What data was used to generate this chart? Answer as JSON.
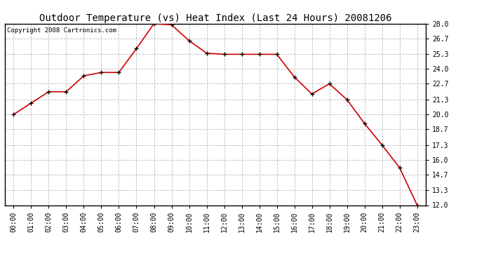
{
  "title": "Outdoor Temperature (vs) Heat Index (Last 24 Hours) 20081206",
  "copyright_text": "Copyright 2008 Cartronics.com",
  "x_labels": [
    "00:00",
    "01:00",
    "02:00",
    "03:00",
    "04:00",
    "05:00",
    "06:00",
    "07:00",
    "08:00",
    "09:00",
    "10:00",
    "11:00",
    "12:00",
    "13:00",
    "14:00",
    "15:00",
    "16:00",
    "17:00",
    "18:00",
    "19:00",
    "20:00",
    "21:00",
    "22:00",
    "23:00"
  ],
  "y_values": [
    20.0,
    21.0,
    22.0,
    22.0,
    23.4,
    23.7,
    23.7,
    25.8,
    28.0,
    27.9,
    26.5,
    25.4,
    25.3,
    25.3,
    25.3,
    25.3,
    23.3,
    21.8,
    22.7,
    21.3,
    19.2,
    17.3,
    15.3,
    12.0
  ],
  "y_ticks": [
    12.0,
    13.3,
    14.7,
    16.0,
    17.3,
    18.7,
    20.0,
    21.3,
    22.7,
    24.0,
    25.3,
    26.7,
    28.0
  ],
  "ylim": [
    12.0,
    28.0
  ],
  "xlim": [
    -0.5,
    23.5
  ],
  "line_color": "#cc0000",
  "marker_color": "#000000",
  "bg_color": "#ffffff",
  "grid_color": "#bbbbbb",
  "title_fontsize": 10,
  "tick_fontsize": 7,
  "copyright_fontsize": 6.5
}
